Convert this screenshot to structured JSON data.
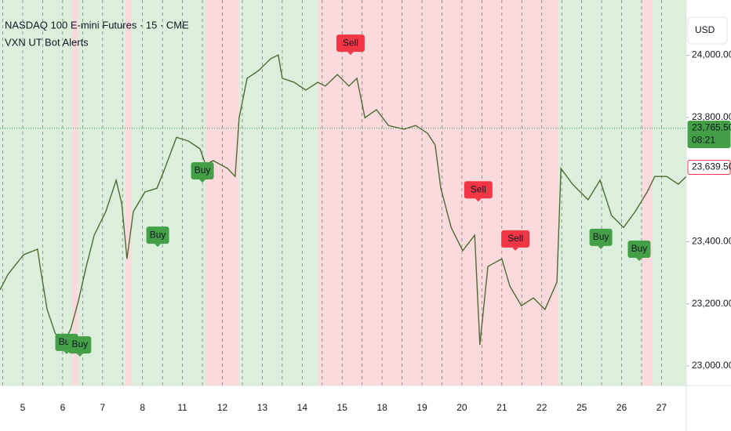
{
  "chart_data": {
    "type": "line",
    "title": "NASDAQ 100 E-mini Futures · 15 · CME",
    "subtitle": "VXN UT Bot Alerts",
    "currency": "USD",
    "xlim": [
      -0.57,
      16.62
    ],
    "xticks": [
      {
        "value": 0,
        "label": "5"
      },
      {
        "value": 1,
        "label": "6"
      },
      {
        "value": 2,
        "label": "7"
      },
      {
        "value": 3,
        "label": "8"
      },
      {
        "value": 4,
        "label": "11"
      },
      {
        "value": 5,
        "label": "12"
      },
      {
        "value": 6,
        "label": "13"
      },
      {
        "value": 7,
        "label": "14"
      },
      {
        "value": 8,
        "label": "15"
      },
      {
        "value": 9,
        "label": "18"
      },
      {
        "value": 10,
        "label": "19"
      },
      {
        "value": 11,
        "label": "20"
      },
      {
        "value": 12,
        "label": "21"
      },
      {
        "value": 13,
        "label": "22"
      },
      {
        "value": 14,
        "label": "25"
      },
      {
        "value": 15,
        "label": "26"
      },
      {
        "value": 16,
        "label": "27"
      }
    ],
    "ylim": [
      22937,
      24178
    ],
    "yticks": [
      {
        "value": 23000,
        "label": "23,000.00"
      },
      {
        "value": 23200,
        "label": "23,200.00"
      },
      {
        "value": 23400,
        "label": "23,400.00"
      },
      {
        "value": 23800,
        "label": "23,800.00"
      },
      {
        "value": 24000,
        "label": "24,000.00"
      }
    ],
    "zones": [
      {
        "from": -0.57,
        "to": 1.24,
        "color": "#dcefdc"
      },
      {
        "from": 1.24,
        "to": 1.39,
        "color": "#fadadd"
      },
      {
        "from": 1.39,
        "to": 2.57,
        "color": "#dcefdc"
      },
      {
        "from": 2.57,
        "to": 2.73,
        "color": "#fadadd"
      },
      {
        "from": 2.73,
        "to": 4.58,
        "color": "#dcefdc"
      },
      {
        "from": 4.58,
        "to": 5.42,
        "color": "#fadadd"
      },
      {
        "from": 5.42,
        "to": 7.39,
        "color": "#dcefdc"
      },
      {
        "from": 7.39,
        "to": 13.42,
        "color": "#fadadd"
      },
      {
        "from": 13.42,
        "to": 15.5,
        "color": "#dcefdc"
      },
      {
        "from": 15.5,
        "to": 15.78,
        "color": "#fadadd"
      },
      {
        "from": 15.78,
        "to": 16.62,
        "color": "#dcefdc"
      }
    ],
    "series": [
      {
        "color": "#4d6b33",
        "x": [
          -0.57,
          -0.37,
          0.02,
          0.37,
          0.45,
          0.61,
          0.81,
          1.0,
          1.2,
          1.39,
          1.59,
          1.79,
          2.08,
          2.34,
          2.48,
          2.61,
          2.77,
          3.06,
          3.36,
          3.56,
          3.85,
          4.15,
          4.44,
          4.58,
          4.77,
          5.13,
          5.32,
          5.42,
          5.62,
          5.91,
          6.21,
          6.4,
          6.5,
          6.8,
          7.09,
          7.39,
          7.58,
          7.88,
          8.17,
          8.37,
          8.57,
          8.86,
          9.16,
          9.55,
          9.84,
          10.14,
          10.33,
          10.47,
          10.73,
          11.02,
          11.32,
          11.45,
          11.65,
          12.0,
          12.2,
          12.49,
          12.79,
          13.08,
          13.38,
          13.48,
          13.77,
          14.16,
          14.46,
          14.75,
          15.05,
          15.34,
          15.64,
          15.83,
          16.13,
          16.42,
          16.62
        ],
        "values": [
          23245,
          23295,
          23358,
          23376,
          23308,
          23182,
          23106,
          23068,
          23118,
          23207,
          23320,
          23421,
          23497,
          23598,
          23522,
          23345,
          23497,
          23560,
          23572,
          23636,
          23736,
          23724,
          23699,
          23648,
          23661,
          23636,
          23610,
          23799,
          23926,
          23951,
          23989,
          24001,
          23926,
          23913,
          23888,
          23913,
          23901,
          23938,
          23901,
          23926,
          23799,
          23825,
          23774,
          23762,
          23774,
          23749,
          23711,
          23573,
          23446,
          23371,
          23421,
          23068,
          23320,
          23345,
          23257,
          23194,
          23219,
          23182,
          23270,
          23636,
          23585,
          23535,
          23598,
          23484,
          23446,
          23497,
          23560,
          23610,
          23610,
          23585,
          23610
        ]
      }
    ],
    "signals": [
      {
        "label": "Buy",
        "x": 1.1,
        "y": 23076,
        "color": "#43a047"
      },
      {
        "label": "Buy",
        "x": 1.43,
        "y": 23068,
        "color": "#43a047"
      },
      {
        "label": "Buy",
        "x": 3.38,
        "y": 23421,
        "color": "#43a047"
      },
      {
        "label": "Buy",
        "x": 4.5,
        "y": 23628,
        "color": "#43a047"
      },
      {
        "label": "Sell",
        "x": 8.21,
        "y": 24039,
        "color": "#f23645"
      },
      {
        "label": "Sell",
        "x": 11.41,
        "y": 23567,
        "color": "#f23645"
      },
      {
        "label": "Sell",
        "x": 12.34,
        "y": 23409,
        "color": "#f23645"
      },
      {
        "label": "Buy",
        "x": 14.48,
        "y": 23414,
        "color": "#43a047"
      },
      {
        "label": "Buy",
        "x": 15.44,
        "y": 23376,
        "color": "#43a047"
      }
    ],
    "price_lines": [
      {
        "value": 23765.5,
        "label": "23,765.50",
        "countdown": "08:21",
        "color": "#43a047",
        "fill": true
      },
      {
        "value": 23639.5,
        "label": "23,639.50",
        "color": "#f23645",
        "fill": false
      }
    ]
  }
}
